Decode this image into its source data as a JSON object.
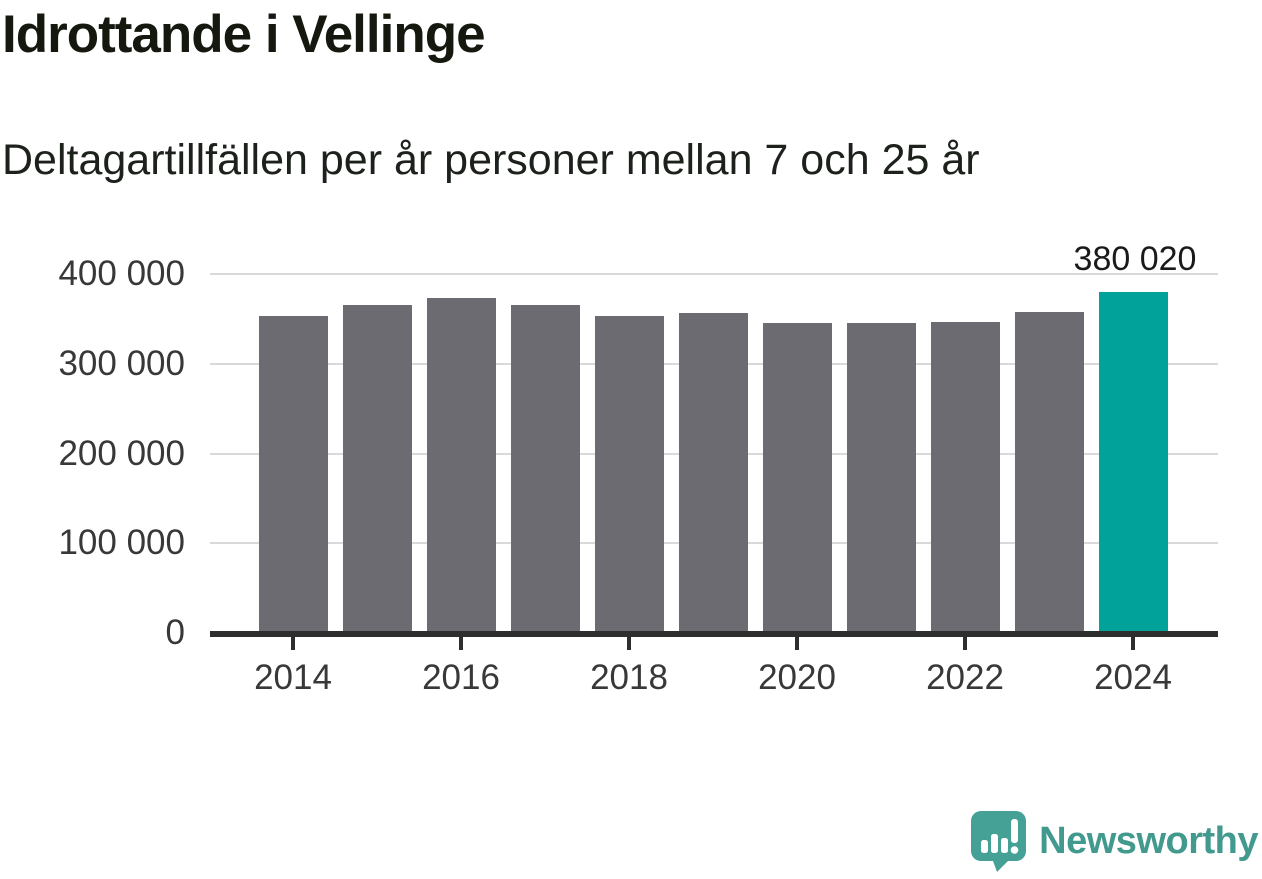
{
  "header": {
    "title": "Idrottande i Vellinge",
    "subtitle": "Deltagartillfällen per år personer mellan 7 och 25 år"
  },
  "chart_data": {
    "type": "bar",
    "x": [
      2014,
      2015,
      2016,
      2017,
      2018,
      2019,
      2020,
      2021,
      2022,
      2023,
      2024
    ],
    "values": [
      353000,
      365000,
      373000,
      366000,
      353000,
      357000,
      345000,
      345000,
      346000,
      358000,
      380020
    ],
    "highlight_index": 10,
    "highlight_label": "380 020",
    "title": "Idrottande i Vellinge",
    "subtitle": "Deltagartillfällen per år personer mellan 7 och 25 år",
    "xlabel": "",
    "ylabel": "",
    "ylim": [
      0,
      400000
    ],
    "yticks": [
      0,
      100000,
      200000,
      300000,
      400000
    ],
    "ytick_labels": [
      "0",
      "100 000",
      "200 000",
      "300 000",
      "400 000"
    ],
    "xticks": [
      2014,
      2016,
      2018,
      2020,
      2022,
      2024
    ],
    "xtick_labels": [
      "2014",
      "2016",
      "2018",
      "2020",
      "2022",
      "2024"
    ],
    "grid": true,
    "legend": false
  },
  "colors": {
    "bar": "#6c6b72",
    "highlight": "#00a29a",
    "grid": "#d9d9d9",
    "axis": "#2e2e2e",
    "logo": "#45a095",
    "brand_text": "#42998e"
  },
  "footer": {
    "brand": "Newsworthy"
  }
}
